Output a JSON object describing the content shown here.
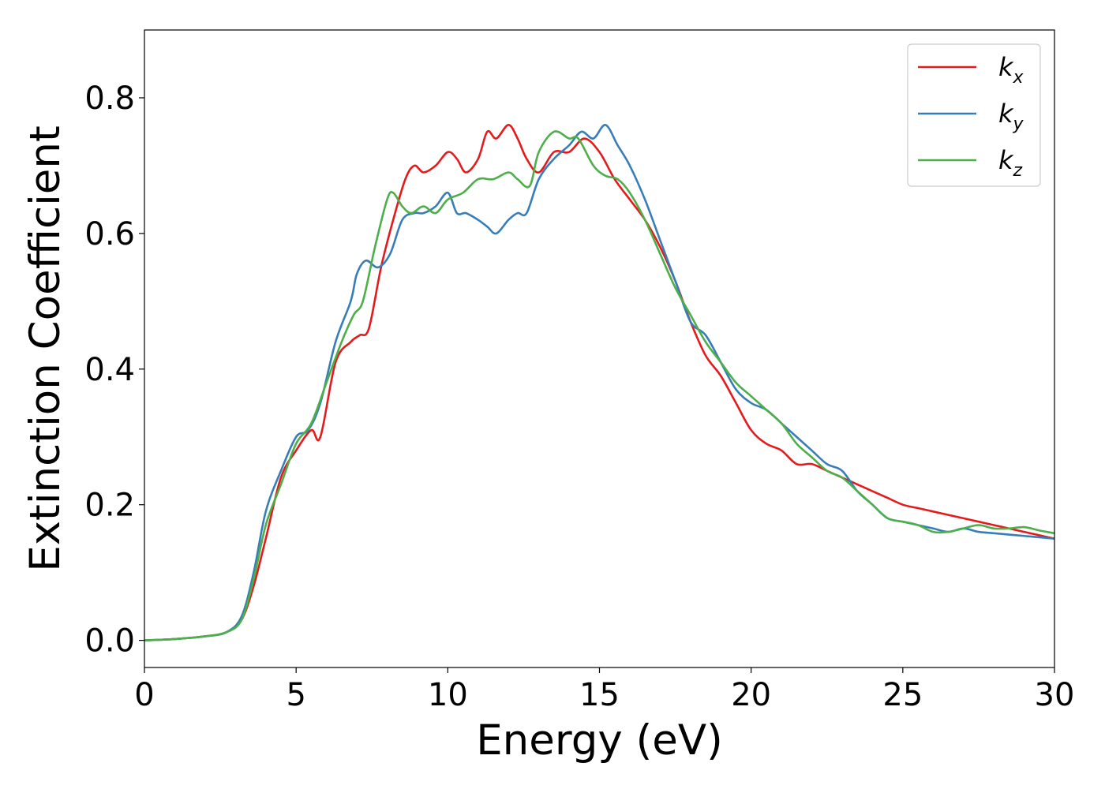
{
  "chart_data": {
    "type": "line",
    "xlabel": "Energy (eV)",
    "ylabel": "Extinction Coefficient",
    "xlim": [
      0,
      30
    ],
    "ylim": [
      -0.04,
      0.9
    ],
    "xticks": [
      0,
      5,
      10,
      15,
      20,
      25,
      30
    ],
    "xtick_labels": [
      "0",
      "5",
      "10",
      "15",
      "20",
      "25",
      "30"
    ],
    "yticks": [
      0.0,
      0.2,
      0.4,
      0.6,
      0.8
    ],
    "ytick_labels": [
      "0.0",
      "0.2",
      "0.4",
      "0.6",
      "0.8"
    ],
    "grid": false,
    "legend_position": "top-right",
    "series": [
      {
        "name": "kx",
        "label_main": "k",
        "label_sub": "x",
        "color": "#e41a1c",
        "x": [
          0,
          1,
          2,
          2.7,
          3.2,
          3.6,
          4.0,
          4.5,
          5.0,
          5.5,
          5.8,
          6.3,
          6.8,
          7.1,
          7.4,
          7.8,
          8.2,
          8.6,
          8.9,
          9.2,
          9.6,
          10.0,
          10.3,
          10.6,
          11.0,
          11.3,
          11.6,
          12.0,
          12.3,
          12.6,
          13.0,
          13.5,
          14.0,
          14.5,
          15.0,
          15.5,
          16.0,
          16.5,
          17.0,
          17.5,
          18.0,
          18.5,
          19.0,
          19.5,
          20.0,
          20.5,
          21.0,
          21.5,
          22.0,
          22.5,
          23.0,
          23.5,
          24.0,
          24.5,
          25.0,
          25.5,
          26.0,
          26.5,
          27.0,
          27.5,
          28.0,
          28.5,
          29.0,
          29.5,
          30.0
        ],
        "y": [
          0.0,
          0.002,
          0.006,
          0.012,
          0.03,
          0.08,
          0.15,
          0.24,
          0.28,
          0.31,
          0.3,
          0.41,
          0.44,
          0.45,
          0.46,
          0.55,
          0.62,
          0.68,
          0.7,
          0.69,
          0.7,
          0.72,
          0.71,
          0.69,
          0.71,
          0.75,
          0.74,
          0.76,
          0.74,
          0.71,
          0.69,
          0.72,
          0.72,
          0.74,
          0.72,
          0.68,
          0.65,
          0.62,
          0.58,
          0.53,
          0.47,
          0.42,
          0.39,
          0.35,
          0.31,
          0.29,
          0.28,
          0.26,
          0.26,
          0.25,
          0.24,
          0.23,
          0.22,
          0.21,
          0.2,
          0.195,
          0.19,
          0.185,
          0.18,
          0.175,
          0.17,
          0.165,
          0.16,
          0.155,
          0.15
        ]
      },
      {
        "name": "ky",
        "label_main": "k",
        "label_sub": "y",
        "color": "#377eb8",
        "x": [
          0,
          1,
          2,
          2.7,
          3.2,
          3.6,
          4.0,
          4.5,
          5.0,
          5.4,
          5.8,
          6.3,
          6.8,
          7.0,
          7.3,
          7.7,
          8.1,
          8.5,
          8.9,
          9.2,
          9.6,
          10.0,
          10.3,
          10.6,
          11.0,
          11.3,
          11.6,
          12.0,
          12.3,
          12.6,
          13.0,
          13.5,
          14.0,
          14.4,
          14.8,
          15.2,
          15.6,
          16.0,
          16.5,
          17.0,
          17.5,
          18.0,
          18.5,
          19.0,
          19.5,
          20.0,
          20.5,
          21.0,
          21.5,
          22.0,
          22.5,
          23.0,
          23.5,
          24.0,
          24.5,
          25.0,
          25.5,
          26.0,
          26.5,
          27.0,
          27.5,
          28.0,
          28.5,
          29.0,
          29.5,
          30.0
        ],
        "y": [
          0.0,
          0.002,
          0.006,
          0.012,
          0.035,
          0.1,
          0.19,
          0.25,
          0.3,
          0.31,
          0.35,
          0.44,
          0.5,
          0.54,
          0.56,
          0.55,
          0.57,
          0.62,
          0.63,
          0.63,
          0.64,
          0.66,
          0.63,
          0.63,
          0.62,
          0.61,
          0.6,
          0.62,
          0.63,
          0.63,
          0.68,
          0.71,
          0.73,
          0.75,
          0.74,
          0.76,
          0.73,
          0.7,
          0.65,
          0.59,
          0.53,
          0.47,
          0.45,
          0.41,
          0.37,
          0.35,
          0.34,
          0.32,
          0.3,
          0.28,
          0.26,
          0.25,
          0.22,
          0.2,
          0.18,
          0.175,
          0.17,
          0.165,
          0.16,
          0.165,
          0.16,
          0.158,
          0.156,
          0.154,
          0.152,
          0.15
        ]
      },
      {
        "name": "kz",
        "label_main": "k",
        "label_sub": "z",
        "color": "#4daf4a",
        "x": [
          0,
          1,
          2,
          2.7,
          3.2,
          3.6,
          4.0,
          4.5,
          5.0,
          5.5,
          6.0,
          6.5,
          6.9,
          7.2,
          7.6,
          8.0,
          8.2,
          8.5,
          8.8,
          9.2,
          9.6,
          10.0,
          10.5,
          11.0,
          11.5,
          12.0,
          12.3,
          12.7,
          13.0,
          13.5,
          14.0,
          14.3,
          14.8,
          15.2,
          15.6,
          16.0,
          16.5,
          17.0,
          17.5,
          18.0,
          18.5,
          19.0,
          19.5,
          20.0,
          20.5,
          21.0,
          21.5,
          22.0,
          22.5,
          23.0,
          23.5,
          24.0,
          24.5,
          25.0,
          25.5,
          26.0,
          26.5,
          27.0,
          27.5,
          28.0,
          28.5,
          29.0,
          29.5,
          30.0
        ],
        "y": [
          0.0,
          0.002,
          0.006,
          0.012,
          0.03,
          0.09,
          0.17,
          0.23,
          0.29,
          0.32,
          0.38,
          0.44,
          0.48,
          0.5,
          0.58,
          0.65,
          0.66,
          0.64,
          0.63,
          0.64,
          0.63,
          0.65,
          0.66,
          0.68,
          0.68,
          0.69,
          0.68,
          0.67,
          0.72,
          0.75,
          0.74,
          0.74,
          0.7,
          0.685,
          0.68,
          0.66,
          0.62,
          0.57,
          0.52,
          0.48,
          0.44,
          0.41,
          0.38,
          0.36,
          0.34,
          0.32,
          0.29,
          0.27,
          0.25,
          0.24,
          0.22,
          0.2,
          0.18,
          0.175,
          0.17,
          0.16,
          0.16,
          0.165,
          0.17,
          0.165,
          0.165,
          0.167,
          0.162,
          0.158
        ]
      }
    ]
  }
}
